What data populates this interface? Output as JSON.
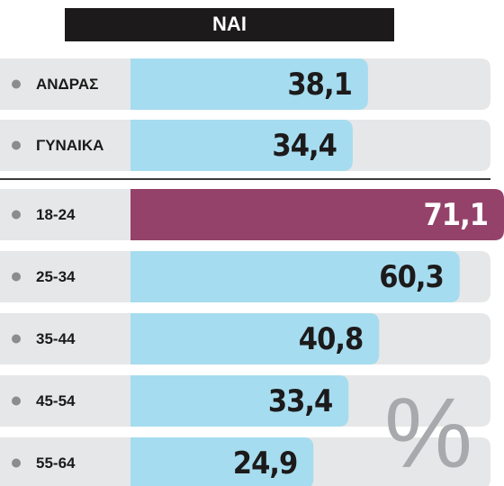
{
  "chart_data": {
    "type": "bar",
    "orientation": "horizontal",
    "title": "ΝΑΙ",
    "categories": [
      "ΑΝΔΡΑΣ",
      "ΓΥΝΑΙΚΑ",
      "18-24",
      "25-34",
      "35-44",
      "45-54",
      "55-64"
    ],
    "values": [
      38.1,
      34.4,
      71.1,
      60.3,
      40.8,
      33.4,
      24.9
    ],
    "value_labels": [
      "38,1",
      "34,4",
      "71,1",
      "60,3",
      "40,8",
      "33,4",
      "24,9"
    ],
    "colors": [
      "#a6dcef",
      "#a6dcef",
      "#95426b",
      "#a6dcef",
      "#a6dcef",
      "#a6dcef",
      "#a6dcef"
    ],
    "annotation": "%"
  }
}
